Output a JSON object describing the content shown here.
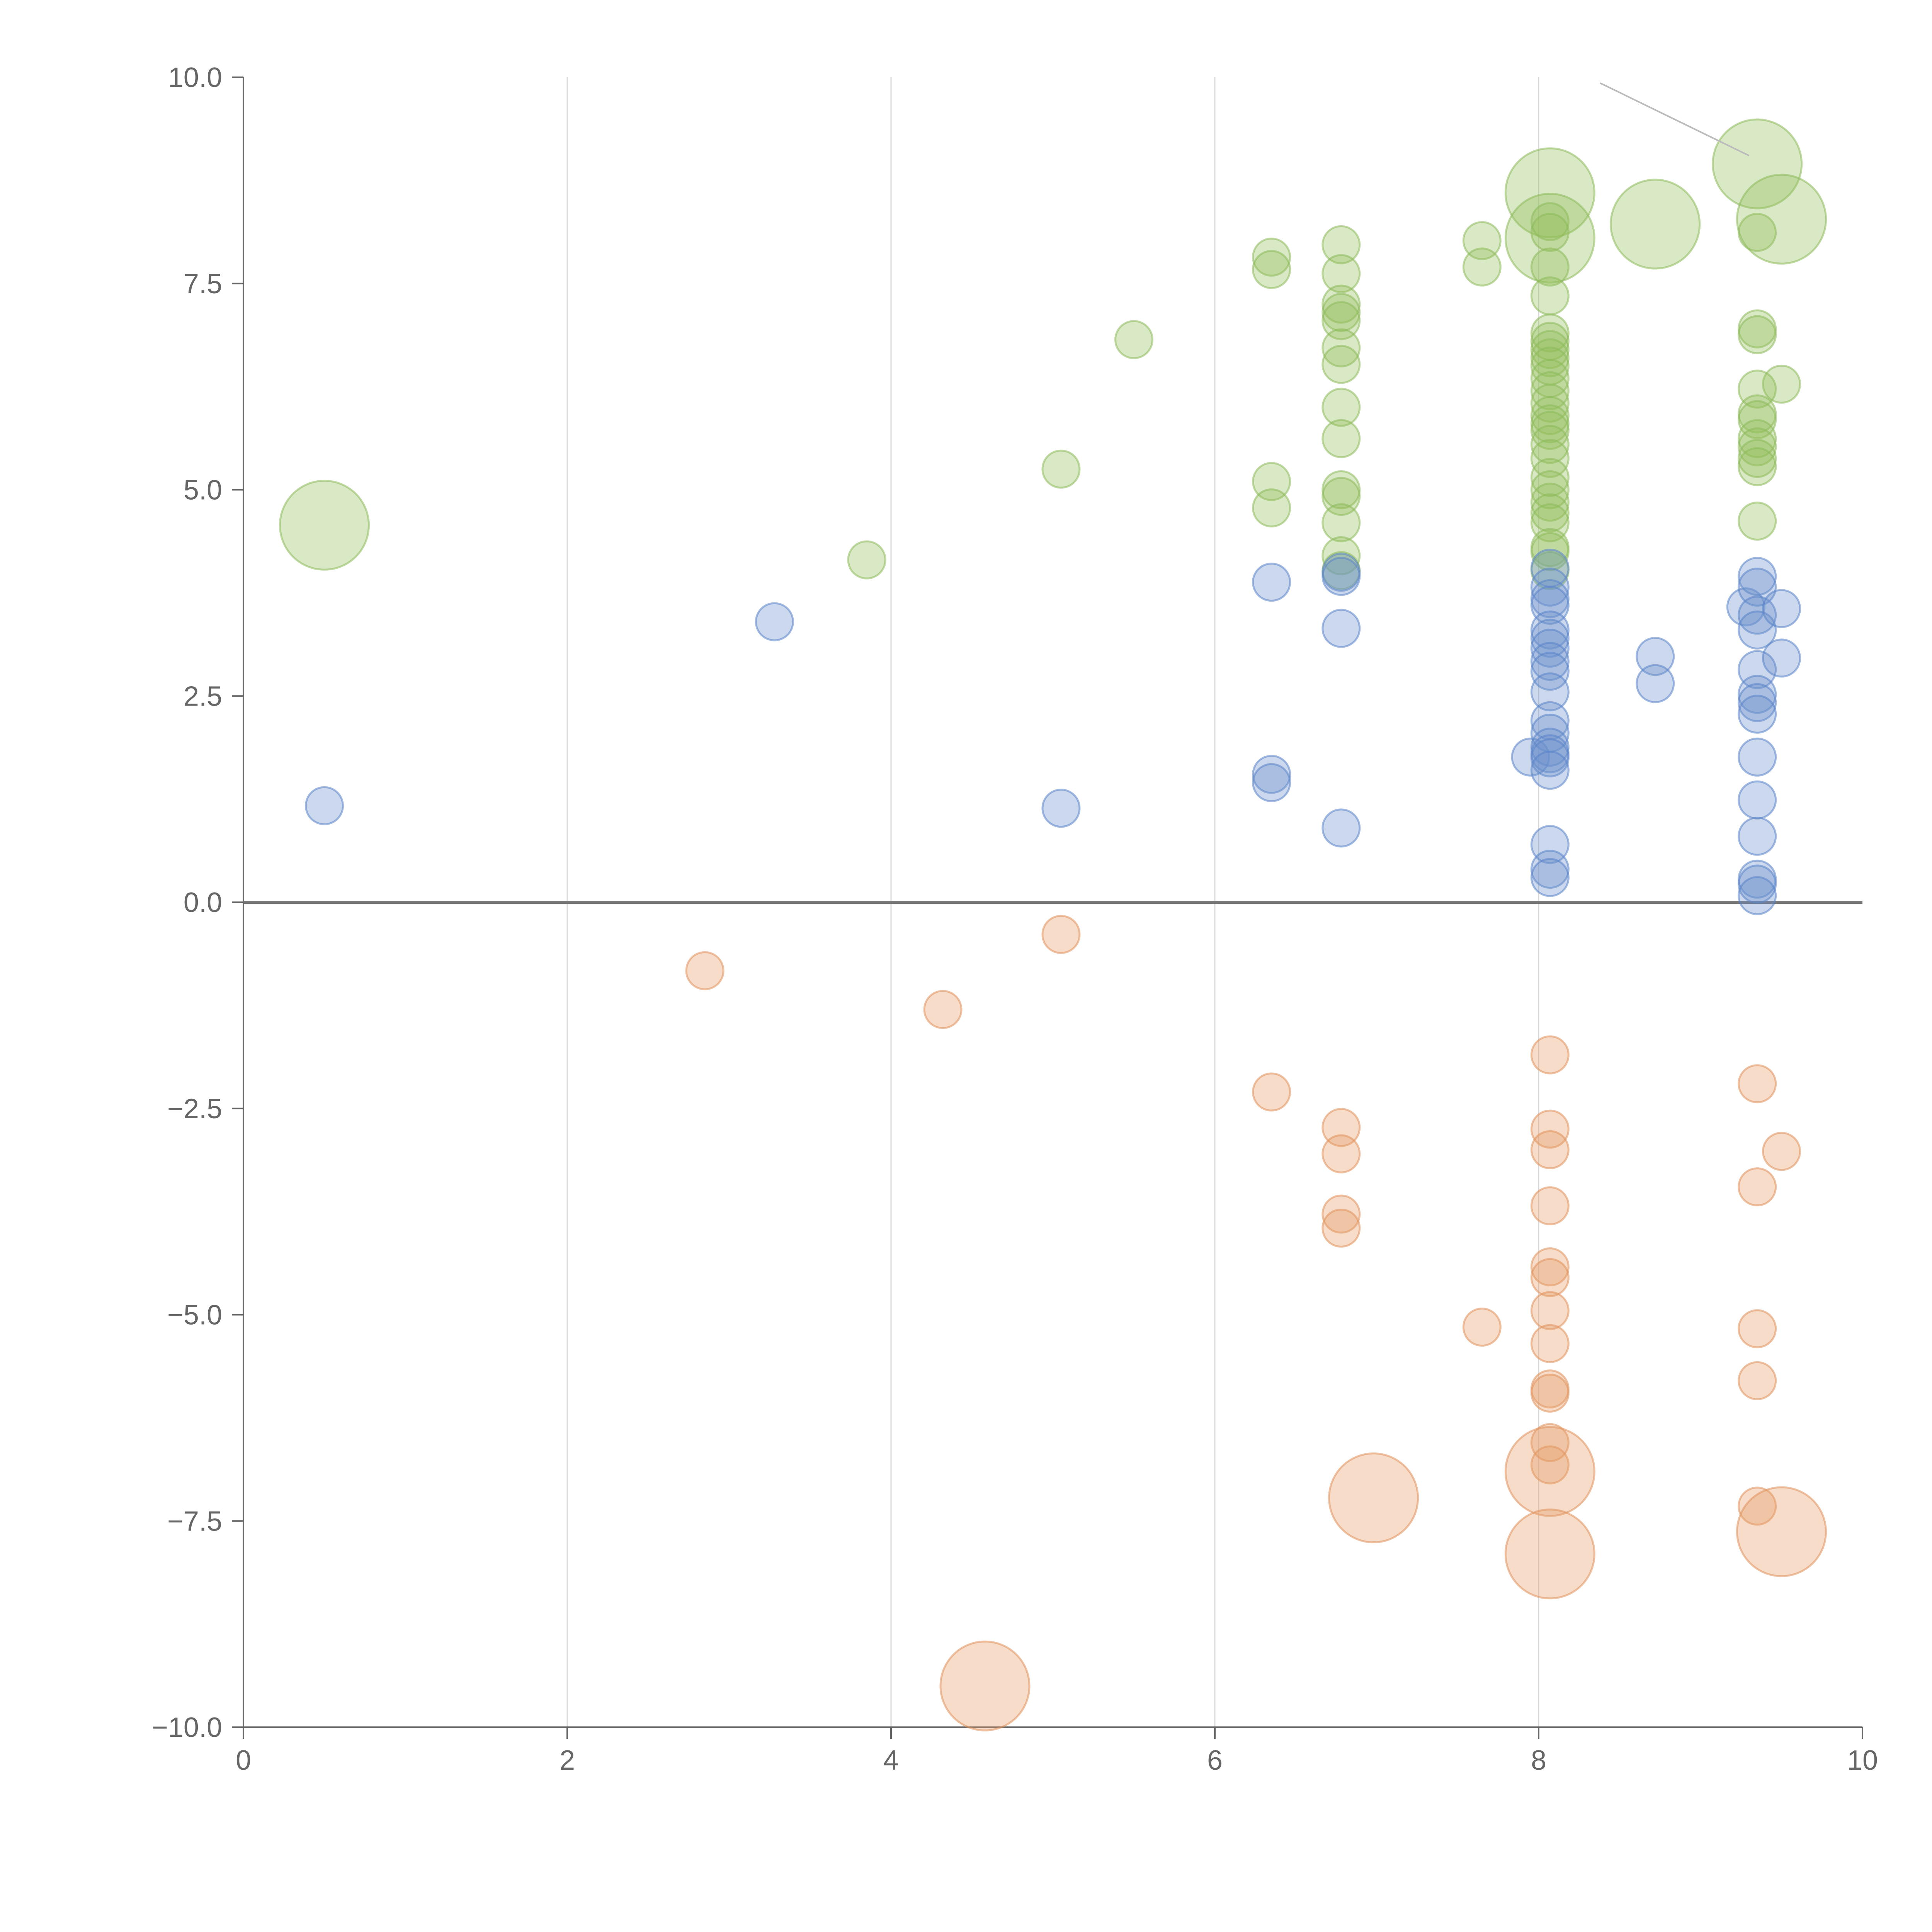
{
  "chart_data": {
    "type": "scatter",
    "title": "",
    "xlabel": "",
    "ylabel": "",
    "xlim": [
      0,
      10
    ],
    "ylim": [
      -10,
      10
    ],
    "grid": "vertical",
    "legend": "none",
    "x_ticks": [
      "0",
      "2",
      "4",
      "6",
      "8",
      "10"
    ],
    "y_ticks": [
      "10.0",
      "7.5",
      "5.0",
      "2.5",
      "0.0",
      "−2.5",
      "−5.0",
      "−7.5",
      "−10.0"
    ],
    "x_tick_values": [
      0,
      2,
      4,
      6,
      8,
      10
    ],
    "y_tick_values": [
      10,
      7.5,
      5,
      2.5,
      0,
      -2.5,
      -5,
      -7.5,
      -10
    ],
    "series": [
      {
        "name": "green",
        "color": "#92BE5A",
        "stroke": "#8DB95B",
        "points": [
          [
            0.5,
            4.57,
            3
          ],
          [
            3.85,
            4.15,
            1
          ],
          [
            5.05,
            5.25,
            1
          ],
          [
            5.5,
            6.82,
            1
          ],
          [
            6.35,
            7.82,
            1
          ],
          [
            6.35,
            7.67,
            1
          ],
          [
            6.35,
            5.1,
            1
          ],
          [
            6.35,
            4.78,
            1
          ],
          [
            6.78,
            7.97,
            1
          ],
          [
            6.78,
            7.62,
            1
          ],
          [
            6.78,
            7.25,
            1
          ],
          [
            6.78,
            7.15,
            1
          ],
          [
            6.78,
            7.05,
            1
          ],
          [
            6.78,
            6.72,
            1
          ],
          [
            6.78,
            6.52,
            1
          ],
          [
            6.78,
            6.0,
            1
          ],
          [
            6.78,
            5.62,
            1
          ],
          [
            6.78,
            5.0,
            1
          ],
          [
            6.78,
            4.92,
            1
          ],
          [
            6.78,
            4.6,
            1
          ],
          [
            6.78,
            4.2,
            1
          ],
          [
            6.78,
            4.02,
            1
          ],
          [
            7.65,
            8.02,
            1
          ],
          [
            7.65,
            7.7,
            1
          ],
          [
            8.07,
            8.6,
            3
          ],
          [
            8.07,
            8.05,
            3
          ],
          [
            8.07,
            8.25,
            1
          ],
          [
            8.07,
            8.12,
            1
          ],
          [
            8.07,
            7.7,
            1
          ],
          [
            8.07,
            7.35,
            1
          ],
          [
            8.07,
            6.9,
            1
          ],
          [
            8.07,
            6.8,
            1
          ],
          [
            8.07,
            6.7,
            1
          ],
          [
            8.07,
            6.6,
            1
          ],
          [
            8.07,
            6.5,
            1
          ],
          [
            8.07,
            6.35,
            1
          ],
          [
            8.07,
            6.2,
            1
          ],
          [
            8.07,
            6.05,
            1
          ],
          [
            8.07,
            5.9,
            1
          ],
          [
            8.07,
            5.8,
            1
          ],
          [
            8.07,
            5.72,
            1
          ],
          [
            8.07,
            5.55,
            1
          ],
          [
            8.07,
            5.38,
            1
          ],
          [
            8.07,
            5.15,
            1
          ],
          [
            8.07,
            5.0,
            1
          ],
          [
            8.07,
            4.85,
            1
          ],
          [
            8.07,
            4.72,
            1
          ],
          [
            8.07,
            4.6,
            1
          ],
          [
            8.07,
            4.3,
            1
          ],
          [
            8.07,
            4.25,
            1
          ],
          [
            8.07,
            4.02,
            1
          ],
          [
            8.72,
            8.22,
            3
          ],
          [
            9.35,
            8.95,
            3
          ],
          [
            9.35,
            8.12,
            1
          ],
          [
            9.35,
            6.95,
            1
          ],
          [
            9.35,
            6.88,
            1
          ],
          [
            9.35,
            6.22,
            1
          ],
          [
            9.35,
            5.92,
            1
          ],
          [
            9.35,
            5.85,
            1
          ],
          [
            9.35,
            5.62,
            1
          ],
          [
            9.35,
            5.52,
            1
          ],
          [
            9.35,
            5.38,
            1
          ],
          [
            9.35,
            5.28,
            1
          ],
          [
            9.35,
            4.62,
            1
          ],
          [
            9.5,
            8.28,
            3
          ],
          [
            9.5,
            6.28,
            1
          ]
        ]
      },
      {
        "name": "blue",
        "color": "#6A8FCC",
        "stroke": "#5A84C8",
        "points": [
          [
            0.5,
            1.17,
            1
          ],
          [
            3.28,
            3.4,
            1
          ],
          [
            5.05,
            1.14,
            1
          ],
          [
            6.35,
            3.88,
            1
          ],
          [
            6.35,
            1.55,
            1
          ],
          [
            6.35,
            1.45,
            1
          ],
          [
            6.78,
            4.0,
            1
          ],
          [
            6.78,
            3.95,
            1
          ],
          [
            6.78,
            3.32,
            1
          ],
          [
            6.78,
            0.9,
            1
          ],
          [
            7.95,
            1.76,
            1
          ],
          [
            8.07,
            4.05,
            1
          ],
          [
            8.07,
            3.82,
            1
          ],
          [
            8.07,
            3.68,
            1
          ],
          [
            8.07,
            3.6,
            1
          ],
          [
            8.07,
            3.3,
            1
          ],
          [
            8.07,
            3.2,
            1
          ],
          [
            8.07,
            3.08,
            1
          ],
          [
            8.07,
            2.92,
            1
          ],
          [
            8.07,
            2.8,
            1
          ],
          [
            8.07,
            2.55,
            1
          ],
          [
            8.07,
            2.2,
            1
          ],
          [
            8.07,
            2.05,
            1
          ],
          [
            8.07,
            1.88,
            1
          ],
          [
            8.07,
            1.8,
            1
          ],
          [
            8.07,
            1.75,
            1
          ],
          [
            8.07,
            1.6,
            1
          ],
          [
            8.07,
            0.7,
            1
          ],
          [
            8.07,
            0.4,
            1
          ],
          [
            8.07,
            0.3,
            1
          ],
          [
            8.72,
            2.98,
            1
          ],
          [
            8.72,
            2.65,
            1
          ],
          [
            9.28,
            3.58,
            1
          ],
          [
            9.35,
            3.95,
            1
          ],
          [
            9.35,
            3.82,
            1
          ],
          [
            9.35,
            3.48,
            1
          ],
          [
            9.35,
            3.3,
            1
          ],
          [
            9.35,
            2.82,
            1
          ],
          [
            9.35,
            2.52,
            1
          ],
          [
            9.35,
            2.42,
            1
          ],
          [
            9.35,
            2.28,
            1
          ],
          [
            9.35,
            1.76,
            1
          ],
          [
            9.35,
            1.24,
            1
          ],
          [
            9.35,
            0.8,
            1
          ],
          [
            9.35,
            0.28,
            1
          ],
          [
            9.35,
            0.22,
            1
          ],
          [
            9.35,
            0.08,
            1
          ],
          [
            9.5,
            3.56,
            1
          ],
          [
            9.5,
            2.96,
            1
          ]
        ]
      },
      {
        "name": "orange",
        "color": "#E59A63",
        "stroke": "#E0915B",
        "points": [
          [
            2.85,
            -0.83,
            1
          ],
          [
            4.32,
            -1.3,
            1
          ],
          [
            5.05,
            -0.39,
            1
          ],
          [
            4.58,
            -9.5,
            3
          ],
          [
            6.35,
            -2.3,
            1
          ],
          [
            6.78,
            -2.73,
            1
          ],
          [
            6.78,
            -3.05,
            1
          ],
          [
            6.78,
            -3.78,
            1
          ],
          [
            6.78,
            -3.95,
            1
          ],
          [
            6.98,
            -7.22,
            3
          ],
          [
            7.65,
            -5.15,
            1
          ],
          [
            8.07,
            -1.85,
            1
          ],
          [
            8.07,
            -2.75,
            1
          ],
          [
            8.07,
            -3.0,
            1
          ],
          [
            8.07,
            -3.68,
            1
          ],
          [
            8.07,
            -4.42,
            1
          ],
          [
            8.07,
            -4.55,
            1
          ],
          [
            8.07,
            -4.95,
            1
          ],
          [
            8.07,
            -5.35,
            1
          ],
          [
            8.07,
            -5.9,
            1
          ],
          [
            8.07,
            -5.95,
            1
          ],
          [
            8.07,
            -6.55,
            1
          ],
          [
            8.07,
            -6.82,
            1
          ],
          [
            8.07,
            -6.9,
            3
          ],
          [
            8.07,
            -7.9,
            3
          ],
          [
            9.35,
            -2.2,
            1
          ],
          [
            9.35,
            -3.45,
            1
          ],
          [
            9.35,
            -5.17,
            1
          ],
          [
            9.35,
            -5.8,
            1
          ],
          [
            9.35,
            -7.32,
            1
          ],
          [
            9.5,
            -3.02,
            1
          ],
          [
            9.5,
            -7.63,
            3
          ]
        ]
      }
    ],
    "annotation_lines": [
      {
        "from": [
          8.38,
          9.93
        ],
        "to": [
          9.3,
          9.05
        ]
      }
    ]
  }
}
